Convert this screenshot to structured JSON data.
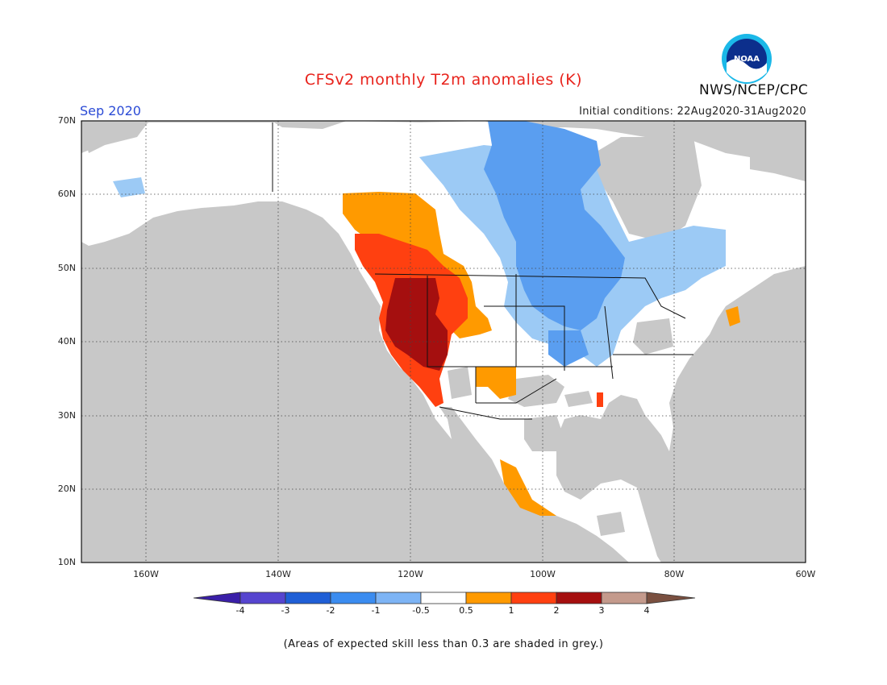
{
  "header": {
    "title": "CFSv2 monthly T2m anomalies (K)",
    "org": "NWS/NCEP/CPC",
    "logo_text": "NOAA",
    "period": "Sep 2020",
    "initial_conditions": "Initial conditions: 22Aug2020-31Aug2020"
  },
  "axes": {
    "lat_labels": [
      "70N",
      "60N",
      "50N",
      "40N",
      "30N",
      "20N",
      "10N"
    ],
    "lon_labels": [
      "160W",
      "140W",
      "120W",
      "100W",
      "80W",
      "60W"
    ]
  },
  "colorbar": {
    "labels": [
      "-4",
      "-3",
      "-2",
      "-1",
      "-0.5",
      "0.5",
      "1",
      "2",
      "3",
      "4"
    ],
    "colors": [
      "#3a1fa8",
      "#5645cf",
      "#1f5fd6",
      "#3b8cf0",
      "#7db4f5",
      "#ffffff",
      "#ff9a00",
      "#ff4010",
      "#a50f0f",
      "#c49a8c",
      "#7a5040"
    ]
  },
  "map_colors": {
    "no_skill_grey": "#c8c8c8",
    "near_zero_white": "#ffffff",
    "light_blue": "#9ccaf5",
    "blue": "#5a9ef0",
    "orange": "#ff9a00",
    "red_orange": "#ff4010",
    "dark_red": "#a50f0f"
  },
  "footnote": "(Areas of expected skill less than 0.3 are shaded in grey.)"
}
